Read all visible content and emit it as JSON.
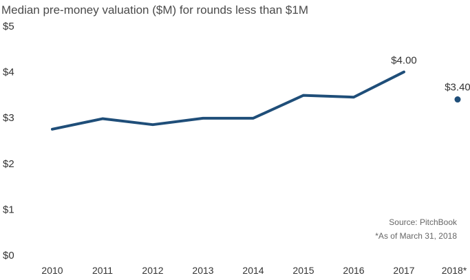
{
  "chart_data": {
    "type": "line",
    "title": "Median pre-money valuation ($M) for rounds less than $1M",
    "categories": [
      "2010",
      "2011",
      "2012",
      "2013",
      "2014",
      "2015",
      "2016",
      "2017",
      "2018*"
    ],
    "series": [
      {
        "values": [
          2.75,
          2.98,
          2.85,
          2.99,
          2.99,
          3.49,
          3.45,
          4.0,
          3.4
        ]
      }
    ],
    "segments": {
      "line_through": "2017",
      "separate_point": "2018*"
    },
    "ylim": [
      0,
      5
    ],
    "yticks": [
      0,
      1,
      2,
      3,
      4,
      5
    ],
    "ytick_labels": [
      "$0",
      "$1",
      "$2",
      "$3",
      "$4",
      "$5"
    ],
    "grid": false,
    "data_labels": [
      {
        "category": "2017",
        "text": "$4.00"
      },
      {
        "category": "2018*",
        "text": "$3.40"
      }
    ],
    "annotations": {
      "source": "Source: PitchBook",
      "footnote": "*As of March 31, 2018"
    },
    "colors": {
      "line": "#1f4e79",
      "text": "#333333",
      "title": "#4a4a4a",
      "note": "#666666"
    }
  }
}
